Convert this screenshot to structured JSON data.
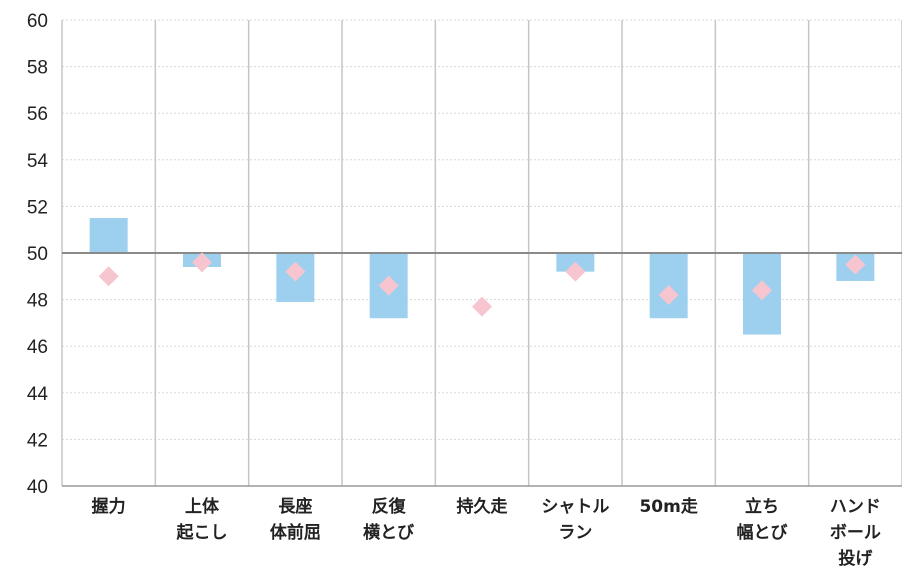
{
  "chart_data": {
    "type": "bar",
    "baseline": 50,
    "ylim": [
      40,
      60
    ],
    "yticks": [
      60,
      58,
      56,
      54,
      52,
      50,
      48,
      46,
      44,
      42,
      40
    ],
    "categories": [
      [
        "握力"
      ],
      [
        "上体",
        "起こし"
      ],
      [
        "長座",
        "体前屈"
      ],
      [
        "反復",
        "横とび"
      ],
      [
        "持久走"
      ],
      [
        "シャトル",
        "ラン"
      ],
      [
        "50m走"
      ],
      [
        "立ち",
        "幅とび"
      ],
      [
        "ハンド",
        "ボール",
        "投げ"
      ]
    ],
    "series": [
      {
        "marker": "bar",
        "color": "#9dd0ee",
        "values": [
          51.5,
          49.4,
          47.9,
          47.2,
          null,
          49.2,
          47.2,
          46.5,
          48.8
        ]
      },
      {
        "marker": "diamond",
        "color": "#f6c5cf",
        "values": [
          49.0,
          49.6,
          49.2,
          48.6,
          47.7,
          49.2,
          48.2,
          48.4,
          49.5
        ]
      }
    ],
    "grid": true
  }
}
